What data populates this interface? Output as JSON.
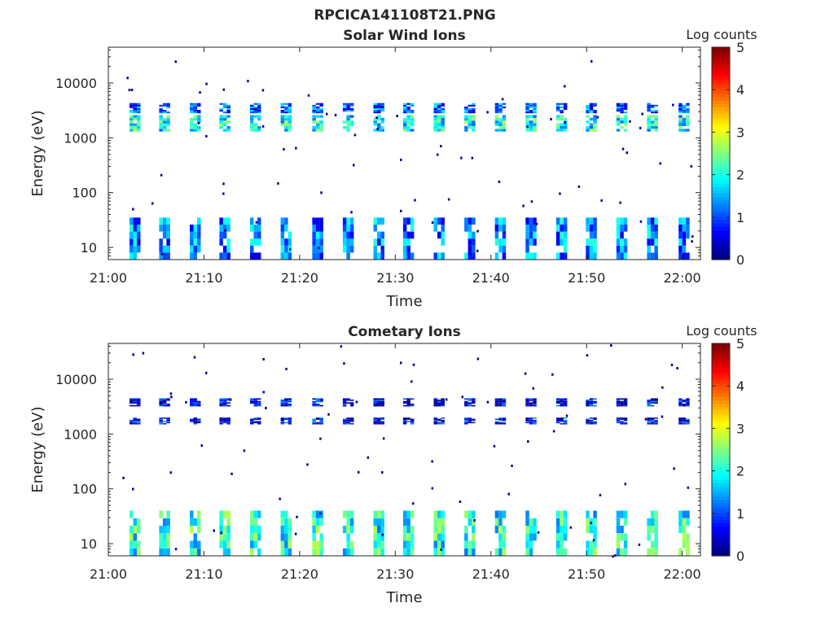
{
  "figure": {
    "title": "RPCICA141108T21.PNG"
  },
  "chart_data": [
    {
      "type": "heatmap",
      "title": "Solar Wind Ions",
      "xlabel": "Time",
      "ylabel": "Energy (eV)",
      "x_ticks": [
        "21:00",
        "21:10",
        "21:20",
        "21:30",
        "21:40",
        "21:50",
        "22:00"
      ],
      "y_ticks": [
        "10",
        "100",
        "1000",
        "10000"
      ],
      "y_scale": "log",
      "ylim": [
        6,
        45000
      ],
      "xlim": [
        "21:00",
        "22:02"
      ],
      "colorbar": {
        "label": "Log counts",
        "ticks": [
          "0",
          "1",
          "2",
          "3",
          "4",
          "5"
        ],
        "range": [
          0,
          5
        ],
        "colormap": "jet"
      },
      "sweep_times_min": [
        2.6,
        5.7,
        8.9,
        12.0,
        15.2,
        18.4,
        21.7,
        24.9,
        28.1,
        31.2,
        34.4,
        37.6,
        40.8,
        44.0,
        47.2,
        50.3,
        53.5,
        56.7,
        60.0
      ],
      "bands": [
        {
          "energy_ev": [
            1300,
            2600
          ],
          "log_counts": 1.9
        },
        {
          "energy_ev": [
            2800,
            4300
          ],
          "log_counts": 1.1
        },
        {
          "energy_ev": [
            6,
            35
          ],
          "log_counts": 1.3
        }
      ]
    },
    {
      "type": "heatmap",
      "title": "Cometary Ions",
      "xlabel": "Time",
      "ylabel": "Energy (eV)",
      "x_ticks": [
        "21:00",
        "21:10",
        "21:20",
        "21:30",
        "21:40",
        "21:50",
        "22:00"
      ],
      "y_ticks": [
        "10",
        "100",
        "1000",
        "10000"
      ],
      "y_scale": "log",
      "ylim": [
        6,
        45000
      ],
      "xlim": [
        "21:00",
        "22:02"
      ],
      "colorbar": {
        "label": "Log counts",
        "ticks": [
          "0",
          "1",
          "2",
          "3",
          "4",
          "5"
        ],
        "range": [
          0,
          5
        ],
        "colormap": "jet"
      },
      "sweep_times_min": [
        2.6,
        5.7,
        8.9,
        12.0,
        15.2,
        18.4,
        21.7,
        24.9,
        28.1,
        31.2,
        34.4,
        37.6,
        40.8,
        44.0,
        47.2,
        50.3,
        53.5,
        56.7,
        60.0
      ],
      "bands": [
        {
          "energy_ev": [
            1500,
            2000
          ],
          "log_counts": 0.6
        },
        {
          "energy_ev": [
            3200,
            4500
          ],
          "log_counts": 0.5
        },
        {
          "energy_ev": [
            6,
            40
          ],
          "log_counts": 2.0
        }
      ]
    }
  ]
}
